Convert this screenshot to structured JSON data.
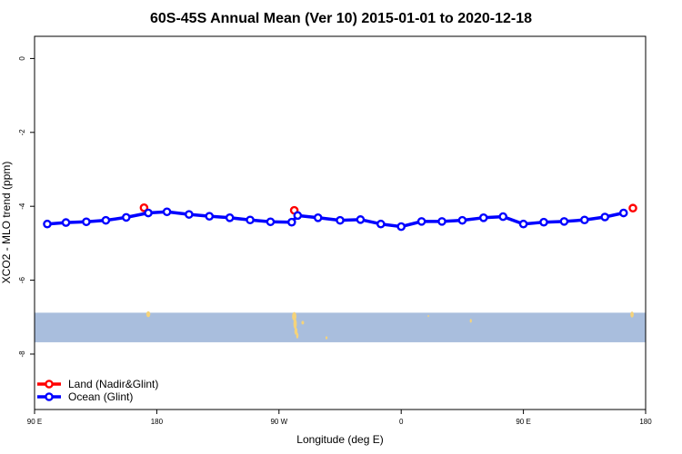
{
  "chart_data": {
    "type": "line",
    "title": "60S-45S Annual Mean (Ver 10)   2015-01-01 to 2020-12-18",
    "xlabel": "Longitude (deg E)",
    "ylabel": "XCO2 - MLO trend (ppm)",
    "xlim": [
      90,
      450
    ],
    "ylim": [
      -9.5,
      0.6
    ],
    "x_ticks": [
      {
        "value": 90,
        "label": "90 E"
      },
      {
        "value": 162,
        "label": "180"
      },
      {
        "value": 234,
        "label": "90 W"
      },
      {
        "value": 306,
        "label": "0"
      },
      {
        "value": 378,
        "label": "90 E"
      },
      {
        "value": 450,
        "label": "180"
      }
    ],
    "y_ticks": [
      {
        "value": 0,
        "label": "0"
      },
      {
        "value": -2,
        "label": "-2"
      },
      {
        "value": -4,
        "label": "-4"
      },
      {
        "value": -6,
        "label": "-6"
      },
      {
        "value": -8,
        "label": "-8"
      }
    ],
    "series": [
      {
        "name": "Land (Nadir&Glint)",
        "color": "#ff0000",
        "points": [
          [
            154.5,
            -4.04
          ],
          [
            243,
            -4.11
          ],
          [
            442.5,
            -4.05
          ]
        ]
      },
      {
        "name": "Ocean (Glint)",
        "color": "#0000ff",
        "points": [
          [
            97.5,
            -4.48
          ],
          [
            108.5,
            -4.44
          ],
          [
            120.5,
            -4.42
          ],
          [
            132,
            -4.38
          ],
          [
            144,
            -4.3
          ],
          [
            157,
            -4.18
          ],
          [
            168,
            -4.15
          ],
          [
            181,
            -4.22
          ],
          [
            193,
            -4.27
          ],
          [
            205,
            -4.31
          ],
          [
            217,
            -4.37
          ],
          [
            229,
            -4.42
          ],
          [
            241.5,
            -4.43
          ],
          [
            245,
            -4.25
          ],
          [
            257,
            -4.31
          ],
          [
            270,
            -4.38
          ],
          [
            282,
            -4.36
          ],
          [
            294,
            -4.48
          ],
          [
            306,
            -4.55
          ],
          [
            318,
            -4.41
          ],
          [
            330,
            -4.41
          ],
          [
            342,
            -4.38
          ],
          [
            354.5,
            -4.31
          ],
          [
            366,
            -4.28
          ],
          [
            378,
            -4.48
          ],
          [
            390,
            -4.43
          ],
          [
            402,
            -4.41
          ],
          [
            414,
            -4.37
          ],
          [
            426,
            -4.29
          ],
          [
            437,
            -4.18
          ]
        ]
      }
    ],
    "map_strip": {
      "y_top": -6.88,
      "y_bottom": -7.68,
      "ocean_color": "#a9bedd",
      "land_color": "#f5d37a"
    },
    "legend": "bottom-left",
    "grid": false
  }
}
